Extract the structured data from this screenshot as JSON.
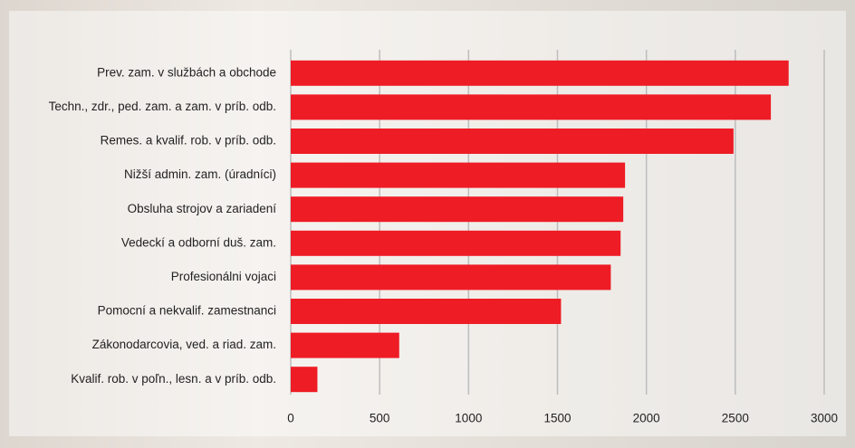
{
  "chart_data": {
    "type": "bar",
    "orientation": "horizontal",
    "categories": [
      "Prev. zam. v službách a obchode",
      "Techn., zdr., ped. zam. a zam. v príb. odb.",
      "Remes. a kvalif. rob. v príb. odb.",
      "Nižší admin. zam. (úradníci)",
      "Obsluha strojov a zariadení",
      "Vedeckí a odborní duš. zam.",
      "Profesionálni vojaci",
      "Pomocní a nekvalif. zamestnanci",
      "Zákonodarcovia, ved. a riad. zam.",
      "Kvalif. rob. v poľn., lesn. a v príb. odb."
    ],
    "values": [
      2800,
      2700,
      2490,
      1880,
      1870,
      1855,
      1800,
      1520,
      610,
      150
    ],
    "color": "#ee1c25",
    "xlim": [
      0,
      3000
    ],
    "xticks": [
      0,
      500,
      1000,
      1500,
      2000,
      2500,
      3000
    ],
    "grid": true
  }
}
